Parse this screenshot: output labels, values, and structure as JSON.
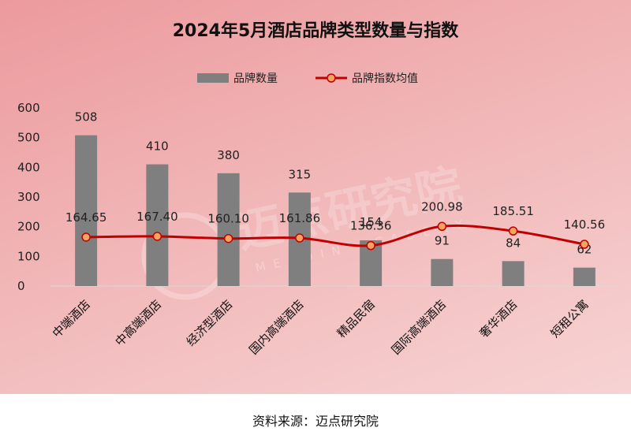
{
  "chart_data": {
    "type": "bar",
    "title": "2024年5月酒店品牌类型数量与指数",
    "categories": [
      "中端酒店",
      "中高端酒店",
      "经济型酒店",
      "国内高端酒店",
      "精品民宿",
      "国际高端酒店",
      "奢华酒店",
      "短租公寓"
    ],
    "series": [
      {
        "name": "品牌数量",
        "type": "bar",
        "color": "#7f7f7f",
        "values": [
          508,
          410,
          380,
          315,
          154,
          91,
          84,
          62
        ]
      },
      {
        "name": "品牌指数均值",
        "type": "line",
        "color": "#c00000",
        "marker_color": "#f4a460",
        "values": [
          164.65,
          167.4,
          160.1,
          161.86,
          136.36,
          200.98,
          185.51,
          140.56
        ]
      }
    ],
    "value_labels": {
      "bar": [
        "508",
        "410",
        "380",
        "315",
        "154",
        "91",
        "84",
        "62"
      ],
      "line": [
        "164.65",
        "167.40",
        "160.10",
        "161.86",
        "136.36",
        "200.98",
        "185.51",
        "140.56"
      ]
    },
    "ylim": [
      0,
      600
    ],
    "yticks": [
      0,
      100,
      200,
      300,
      400,
      500,
      600
    ],
    "grid": false,
    "legend_position": "top"
  },
  "watermark": {
    "text": "迈点研究院",
    "subtext": "MEADIN ACADEMY"
  },
  "footer": {
    "source": "资料来源：迈点研究院"
  }
}
